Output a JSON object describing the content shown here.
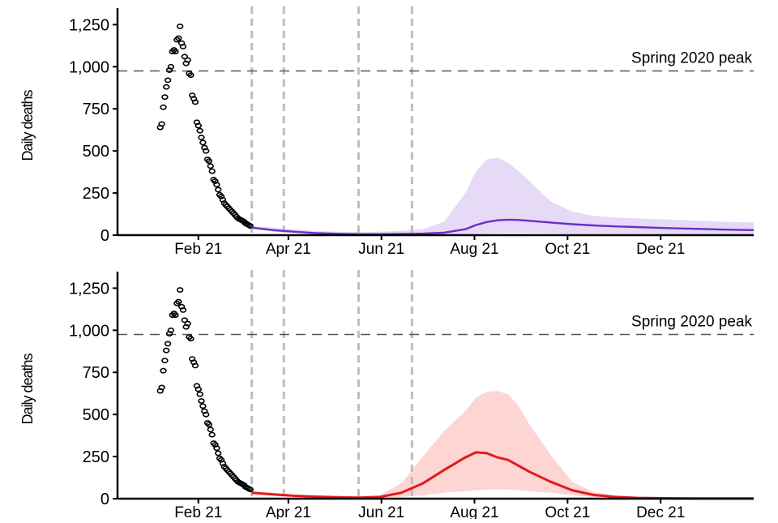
{
  "colors": {
    "observed_marker": "#000000",
    "peak_line": "#555555",
    "step_lines": "#bdbdbd",
    "panel1_line": "#6a2fc8",
    "panel1_band": "#e6daf6",
    "panel2_line": "#e31a1c",
    "panel2_band": "#fdd5d3"
  },
  "chart_data": [
    {
      "type": "line",
      "title": "",
      "xlabel": "",
      "ylabel": "Daily deaths",
      "x_tick_labels": [
        "Feb 21",
        "Apr 21",
        "Jun 21",
        "Aug 21",
        "Oct 21",
        "Dec 21"
      ],
      "x_tick_dates": [
        "2021-02-01",
        "2021-04-01",
        "2021-06-01",
        "2021-08-01",
        "2021-10-01",
        "2021-12-01"
      ],
      "xlim": [
        "2020-12-10",
        "2022-01-31"
      ],
      "y_ticks": [
        0,
        250,
        500,
        750,
        1000,
        1250
      ],
      "y_tick_labels": [
        "0",
        "250",
        "500",
        "750",
        "1,000",
        "1,250"
      ],
      "ylim": [
        0,
        1300
      ],
      "grid": false,
      "reference_line": {
        "y": 975,
        "label": "Spring 2020 peak"
      },
      "step_dates": [
        "2021-03-08",
        "2021-03-29",
        "2021-05-17",
        "2021-06-21"
      ],
      "observed": [
        [
          "2021-01-07",
          640
        ],
        [
          "2021-01-08",
          660
        ],
        [
          "2021-01-09",
          760
        ],
        [
          "2021-01-10",
          820
        ],
        [
          "2021-01-11",
          880
        ],
        [
          "2021-01-12",
          920
        ],
        [
          "2021-01-13",
          980
        ],
        [
          "2021-01-14",
          1000
        ],
        [
          "2021-01-15",
          1090
        ],
        [
          "2021-01-16",
          1100
        ],
        [
          "2021-01-17",
          1090
        ],
        [
          "2021-01-18",
          1160
        ],
        [
          "2021-01-19",
          1170
        ],
        [
          "2021-01-20",
          1240
        ],
        [
          "2021-01-21",
          1140
        ],
        [
          "2021-01-22",
          1120
        ],
        [
          "2021-01-23",
          1060
        ],
        [
          "2021-01-24",
          1020
        ],
        [
          "2021-01-25",
          1040
        ],
        [
          "2021-01-26",
          960
        ],
        [
          "2021-01-27",
          950
        ],
        [
          "2021-01-28",
          830
        ],
        [
          "2021-01-29",
          810
        ],
        [
          "2021-01-30",
          790
        ],
        [
          "2021-01-31",
          670
        ],
        [
          "2021-02-01",
          650
        ],
        [
          "2021-02-02",
          620
        ],
        [
          "2021-02-03",
          580
        ],
        [
          "2021-02-04",
          550
        ],
        [
          "2021-02-05",
          520
        ],
        [
          "2021-02-06",
          500
        ],
        [
          "2021-02-07",
          450
        ],
        [
          "2021-02-08",
          440
        ],
        [
          "2021-02-09",
          410
        ],
        [
          "2021-02-10",
          380
        ],
        [
          "2021-02-11",
          330
        ],
        [
          "2021-02-12",
          320
        ],
        [
          "2021-02-13",
          300
        ],
        [
          "2021-02-14",
          270
        ],
        [
          "2021-02-15",
          240
        ],
        [
          "2021-02-16",
          230
        ],
        [
          "2021-02-17",
          210
        ],
        [
          "2021-02-18",
          190
        ],
        [
          "2021-02-19",
          180
        ],
        [
          "2021-02-20",
          170
        ],
        [
          "2021-02-21",
          160
        ],
        [
          "2021-02-22",
          150
        ],
        [
          "2021-02-23",
          140
        ],
        [
          "2021-02-24",
          130
        ],
        [
          "2021-02-25",
          120
        ],
        [
          "2021-02-26",
          110
        ],
        [
          "2021-02-27",
          100
        ],
        [
          "2021-02-28",
          95
        ],
        [
          "2021-03-01",
          90
        ],
        [
          "2021-03-02",
          85
        ],
        [
          "2021-03-03",
          80
        ],
        [
          "2021-03-04",
          70
        ],
        [
          "2021-03-05",
          65
        ],
        [
          "2021-03-06",
          60
        ],
        [
          "2021-03-07",
          55
        ]
      ],
      "series": [
        {
          "x": [
            "2021-03-08",
            "2021-03-22",
            "2021-04-05",
            "2021-04-19",
            "2021-05-03",
            "2021-05-17",
            "2021-05-31",
            "2021-06-14",
            "2021-06-28",
            "2021-07-12",
            "2021-07-26",
            "2021-08-02",
            "2021-08-09",
            "2021-08-16",
            "2021-08-23",
            "2021-08-30",
            "2021-09-06",
            "2021-09-20",
            "2021-10-04",
            "2021-10-18",
            "2021-11-01",
            "2021-11-15",
            "2021-11-29",
            "2021-12-13",
            "2021-12-27",
            "2022-01-10",
            "2022-01-31"
          ],
          "values": [
            45,
            30,
            20,
            12,
            8,
            6,
            6,
            7,
            9,
            15,
            35,
            60,
            78,
            88,
            92,
            90,
            85,
            75,
            65,
            58,
            52,
            48,
            44,
            40,
            37,
            33,
            30
          ],
          "lower": [
            38,
            20,
            12,
            6,
            3,
            2,
            2,
            2,
            2,
            3,
            5,
            8,
            10,
            12,
            13,
            13,
            12,
            11,
            10,
            10,
            9,
            9,
            8,
            8,
            7,
            7,
            6
          ],
          "upper": [
            55,
            45,
            35,
            25,
            20,
            18,
            20,
            25,
            35,
            80,
            250,
            380,
            450,
            460,
            430,
            380,
            320,
            200,
            140,
            115,
            105,
            100,
            95,
            90,
            85,
            80,
            75
          ]
        }
      ]
    },
    {
      "type": "line",
      "title": "",
      "xlabel": "",
      "ylabel": "Daily deaths",
      "x_tick_labels": [
        "Feb 21",
        "Apr 21",
        "Jun 21",
        "Aug 21",
        "Oct 21",
        "Dec 21"
      ],
      "x_tick_dates": [
        "2021-02-01",
        "2021-04-01",
        "2021-06-01",
        "2021-08-01",
        "2021-10-01",
        "2021-12-01"
      ],
      "xlim": [
        "2020-12-10",
        "2022-01-31"
      ],
      "y_ticks": [
        0,
        250,
        500,
        750,
        1000,
        1250
      ],
      "y_tick_labels": [
        "0",
        "250",
        "500",
        "750",
        "1,000",
        "1,250"
      ],
      "ylim": [
        0,
        1300
      ],
      "grid": false,
      "reference_line": {
        "y": 975,
        "label": "Spring 2020 peak"
      },
      "step_dates": [
        "2021-03-08",
        "2021-03-29",
        "2021-05-17",
        "2021-06-21"
      ],
      "observed": [
        [
          "2021-01-07",
          640
        ],
        [
          "2021-01-08",
          660
        ],
        [
          "2021-01-09",
          760
        ],
        [
          "2021-01-10",
          820
        ],
        [
          "2021-01-11",
          880
        ],
        [
          "2021-01-12",
          920
        ],
        [
          "2021-01-13",
          980
        ],
        [
          "2021-01-14",
          1000
        ],
        [
          "2021-01-15",
          1090
        ],
        [
          "2021-01-16",
          1100
        ],
        [
          "2021-01-17",
          1090
        ],
        [
          "2021-01-18",
          1160
        ],
        [
          "2021-01-19",
          1170
        ],
        [
          "2021-01-20",
          1240
        ],
        [
          "2021-01-21",
          1140
        ],
        [
          "2021-01-22",
          1120
        ],
        [
          "2021-01-23",
          1060
        ],
        [
          "2021-01-24",
          1020
        ],
        [
          "2021-01-25",
          1040
        ],
        [
          "2021-01-26",
          960
        ],
        [
          "2021-01-27",
          950
        ],
        [
          "2021-01-28",
          830
        ],
        [
          "2021-01-29",
          810
        ],
        [
          "2021-01-30",
          790
        ],
        [
          "2021-01-31",
          670
        ],
        [
          "2021-02-01",
          650
        ],
        [
          "2021-02-02",
          620
        ],
        [
          "2021-02-03",
          580
        ],
        [
          "2021-02-04",
          550
        ],
        [
          "2021-02-05",
          520
        ],
        [
          "2021-02-06",
          500
        ],
        [
          "2021-02-07",
          450
        ],
        [
          "2021-02-08",
          440
        ],
        [
          "2021-02-09",
          410
        ],
        [
          "2021-02-10",
          380
        ],
        [
          "2021-02-11",
          330
        ],
        [
          "2021-02-12",
          320
        ],
        [
          "2021-02-13",
          300
        ],
        [
          "2021-02-14",
          270
        ],
        [
          "2021-02-15",
          240
        ],
        [
          "2021-02-16",
          230
        ],
        [
          "2021-02-17",
          210
        ],
        [
          "2021-02-18",
          190
        ],
        [
          "2021-02-19",
          180
        ],
        [
          "2021-02-20",
          170
        ],
        [
          "2021-02-21",
          160
        ],
        [
          "2021-02-22",
          150
        ],
        [
          "2021-02-23",
          140
        ],
        [
          "2021-02-24",
          130
        ],
        [
          "2021-02-25",
          120
        ],
        [
          "2021-02-26",
          110
        ],
        [
          "2021-02-27",
          100
        ],
        [
          "2021-02-28",
          95
        ],
        [
          "2021-03-01",
          90
        ],
        [
          "2021-03-02",
          85
        ],
        [
          "2021-03-03",
          80
        ],
        [
          "2021-03-04",
          70
        ],
        [
          "2021-03-05",
          65
        ],
        [
          "2021-03-06",
          60
        ],
        [
          "2021-03-07",
          55
        ]
      ],
      "series": [
        {
          "x": [
            "2021-03-08",
            "2021-03-22",
            "2021-04-05",
            "2021-04-19",
            "2021-05-03",
            "2021-05-17",
            "2021-05-31",
            "2021-06-14",
            "2021-06-28",
            "2021-07-12",
            "2021-07-26",
            "2021-08-02",
            "2021-08-09",
            "2021-08-16",
            "2021-08-23",
            "2021-08-30",
            "2021-09-06",
            "2021-09-20",
            "2021-10-04",
            "2021-10-18",
            "2021-11-01",
            "2021-11-15",
            "2021-11-29",
            "2021-12-13",
            "2021-12-27",
            "2022-01-10",
            "2022-01-31"
          ],
          "values": [
            35,
            25,
            17,
            12,
            8,
            6,
            10,
            35,
            90,
            170,
            245,
            275,
            270,
            245,
            230,
            195,
            160,
            100,
            50,
            22,
            10,
            5,
            3,
            2,
            1,
            1,
            1
          ],
          "lower": [
            30,
            20,
            12,
            8,
            5,
            4,
            5,
            10,
            20,
            35,
            45,
            50,
            55,
            55,
            55,
            50,
            45,
            35,
            20,
            10,
            5,
            3,
            2,
            1,
            0,
            0,
            0
          ],
          "upper": [
            45,
            35,
            25,
            18,
            12,
            10,
            20,
            90,
            250,
            400,
            520,
            600,
            635,
            640,
            620,
            550,
            440,
            260,
            100,
            40,
            20,
            10,
            5,
            3,
            2,
            2,
            1
          ]
        }
      ]
    }
  ]
}
